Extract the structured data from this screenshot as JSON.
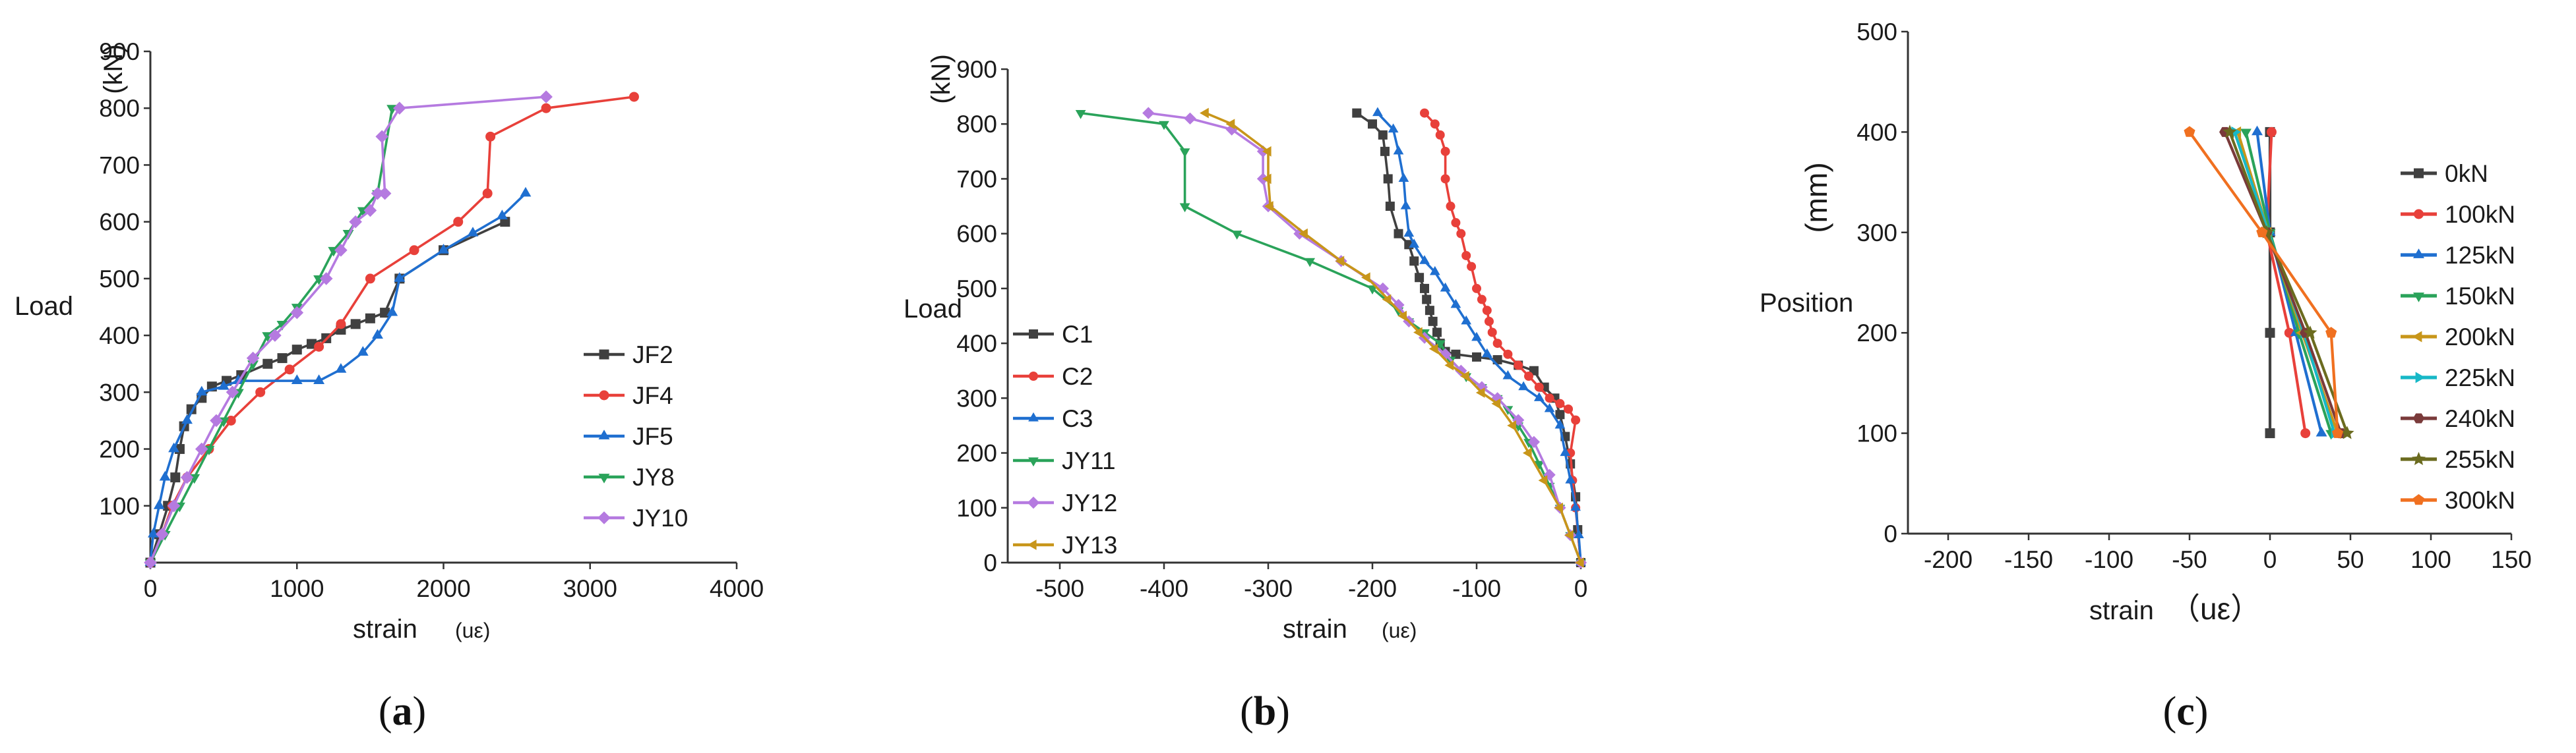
{
  "chart_data": [
    {
      "type": "line",
      "caption": "a",
      "xlabel": "strain",
      "xunit": "(uε)",
      "ylabel": "Load",
      "yunit": "(kN)",
      "xlim": [
        0,
        4000
      ],
      "ylim": [
        0,
        900
      ],
      "xticks": [
        0,
        1000,
        2000,
        3000,
        4000
      ],
      "yticks": [
        100,
        200,
        300,
        400,
        500,
        600,
        700,
        800,
        900
      ],
      "series": [
        {
          "name": "JF2",
          "color": "#404040",
          "marker": "square",
          "x": [
            0,
            60,
            120,
            170,
            200,
            230,
            280,
            350,
            420,
            520,
            620,
            800,
            900,
            1000,
            1100,
            1200,
            1300,
            1400,
            1500,
            1600,
            1700,
            2000,
            2420
          ],
          "y": [
            0,
            50,
            100,
            150,
            200,
            240,
            270,
            290,
            310,
            320,
            330,
            350,
            360,
            375,
            385,
            395,
            410,
            420,
            430,
            440,
            500,
            550,
            600
          ]
        },
        {
          "name": "JF4",
          "color": "#e8403a",
          "marker": "circle",
          "x": [
            0,
            80,
            150,
            250,
            400,
            550,
            750,
            950,
            1150,
            1300,
            1500,
            1800,
            2100,
            2300,
            2320,
            2700,
            3300
          ],
          "y": [
            0,
            50,
            100,
            150,
            200,
            250,
            300,
            340,
            380,
            420,
            500,
            550,
            600,
            650,
            750,
            800,
            820
          ]
        },
        {
          "name": "JF5",
          "color": "#1f6fd0",
          "marker": "triangle",
          "x": [
            0,
            20,
            60,
            100,
            160,
            250,
            350,
            500,
            600,
            1000,
            1150,
            1300,
            1450,
            1550,
            1650,
            1700,
            2000,
            2200,
            2400,
            2560
          ],
          "y": [
            0,
            50,
            100,
            150,
            200,
            250,
            300,
            310,
            320,
            320,
            320,
            340,
            370,
            400,
            440,
            500,
            550,
            580,
            610,
            650
          ]
        },
        {
          "name": "JY8",
          "color": "#2aa35a",
          "marker": "triangle-down",
          "x": [
            0,
            100,
            200,
            300,
            400,
            500,
            600,
            700,
            800,
            900,
            1000,
            1150,
            1250,
            1350,
            1450,
            1550,
            1650
          ],
          "y": [
            0,
            50,
            100,
            150,
            200,
            250,
            300,
            350,
            400,
            420,
            450,
            500,
            550,
            580,
            620,
            650,
            800
          ]
        },
        {
          "name": "JY10",
          "color": "#b57ae0",
          "marker": "diamond",
          "x": [
            0,
            80,
            160,
            250,
            350,
            450,
            560,
            700,
            850,
            1000,
            1200,
            1300,
            1400,
            1500,
            1550,
            1600,
            1580,
            1700,
            2700
          ],
          "y": [
            0,
            50,
            100,
            150,
            200,
            250,
            300,
            360,
            400,
            440,
            500,
            550,
            600,
            620,
            650,
            650,
            750,
            800,
            820
          ]
        }
      ]
    },
    {
      "type": "line",
      "caption": "b",
      "xlabel": "strain",
      "xunit": "(uε)",
      "ylabel": "Load",
      "yunit": "(kN)",
      "xlim": [
        -550,
        0
      ],
      "ylim": [
        0,
        900
      ],
      "xticks": [
        -500,
        -400,
        -300,
        -200,
        -100,
        0
      ],
      "yticks": [
        0,
        100,
        200,
        300,
        400,
        500,
        600,
        700,
        800,
        900
      ],
      "series": [
        {
          "name": "C1",
          "color": "#404040",
          "marker": "square",
          "x": [
            -215,
            -200,
            -190,
            -188,
            -185,
            -183,
            -175,
            -165,
            -160,
            -155,
            -150,
            -148,
            -145,
            -142,
            -138,
            -135,
            -130,
            -120,
            -100,
            -80,
            -60,
            -45,
            -35,
            -25,
            -20,
            -15,
            -10,
            -5,
            -3,
            0
          ],
          "y": [
            820,
            800,
            780,
            750,
            700,
            650,
            600,
            580,
            550,
            520,
            500,
            480,
            460,
            440,
            420,
            400,
            385,
            380,
            375,
            370,
            360,
            350,
            320,
            300,
            270,
            230,
            180,
            120,
            60,
            0
          ]
        },
        {
          "name": "C2",
          "color": "#e8403a",
          "marker": "circle",
          "x": [
            -150,
            -140,
            -135,
            -130,
            -130,
            -125,
            -120,
            -115,
            -110,
            -105,
            -100,
            -95,
            -90,
            -88,
            -85,
            -80,
            -70,
            -60,
            -50,
            -40,
            -30,
            -20,
            -12,
            -5,
            -10,
            -8,
            -5,
            0
          ],
          "y": [
            820,
            800,
            780,
            750,
            700,
            650,
            620,
            600,
            560,
            540,
            500,
            480,
            460,
            440,
            420,
            400,
            380,
            360,
            340,
            320,
            300,
            290,
            280,
            260,
            200,
            150,
            100,
            0
          ]
        },
        {
          "name": "C3",
          "color": "#1f6fd0",
          "marker": "triangle",
          "x": [
            -195,
            -180,
            -175,
            -170,
            -168,
            -165,
            -160,
            -150,
            -140,
            -130,
            -120,
            -110,
            -100,
            -90,
            -70,
            -55,
            -40,
            -30,
            -20,
            -15,
            -10,
            -5,
            -2,
            0
          ],
          "y": [
            820,
            790,
            750,
            700,
            650,
            600,
            580,
            550,
            530,
            500,
            470,
            440,
            410,
            380,
            340,
            320,
            300,
            280,
            250,
            200,
            150,
            100,
            50,
            0
          ]
        },
        {
          "name": "JY11",
          "color": "#2aa35a",
          "marker": "triangle-down",
          "x": [
            -480,
            -400,
            -380,
            -380,
            -330,
            -260,
            -200,
            -175,
            -165,
            -150,
            -135,
            -125,
            -110,
            -95,
            -80,
            -70,
            -60,
            -50,
            -40,
            -30,
            -20,
            -10,
            0
          ],
          "y": [
            820,
            800,
            750,
            650,
            600,
            550,
            500,
            460,
            440,
            420,
            400,
            370,
            340,
            320,
            300,
            280,
            250,
            220,
            180,
            140,
            100,
            50,
            0
          ]
        },
        {
          "name": "JY12",
          "color": "#b57ae0",
          "marker": "diamond",
          "x": [
            -415,
            -375,
            -335,
            -305,
            -305,
            -300,
            -270,
            -230,
            -190,
            -175,
            -165,
            -150,
            -130,
            -115,
            -95,
            -80,
            -60,
            -45,
            -30,
            -20,
            -10,
            0
          ],
          "y": [
            820,
            810,
            790,
            750,
            700,
            650,
            600,
            550,
            500,
            470,
            440,
            410,
            380,
            350,
            320,
            300,
            260,
            220,
            160,
            100,
            50,
            0
          ]
        },
        {
          "name": "JY13",
          "color": "#c8961a",
          "marker": "triangle-left",
          "x": [
            -360,
            -335,
            -300,
            -300,
            -298,
            -265,
            -230,
            -205,
            -185,
            -170,
            -155,
            -140,
            -125,
            -110,
            -95,
            -80,
            -65,
            -50,
            -35,
            -20,
            -10,
            0
          ],
          "y": [
            820,
            800,
            750,
            700,
            650,
            600,
            550,
            520,
            480,
            450,
            420,
            390,
            360,
            340,
            310,
            290,
            250,
            200,
            150,
            100,
            50,
            0
          ]
        }
      ]
    },
    {
      "type": "line",
      "caption": "c",
      "xlabel": "strain",
      "xunit": "（uε）",
      "ylabel": "Position",
      "yunit": "(mm)",
      "orientation": "profile",
      "xlim": [
        -225,
        150
      ],
      "ylim": [
        0,
        500
      ],
      "xticks": [
        -200,
        -150,
        -100,
        -50,
        0,
        50,
        100,
        150
      ],
      "yticks": [
        0,
        100,
        200,
        300,
        400,
        500
      ],
      "series": [
        {
          "name": "0kN",
          "color": "#404040",
          "marker": "square",
          "x": [
            0,
            0,
            0,
            0
          ],
          "y": [
            100,
            200,
            300,
            400
          ]
        },
        {
          "name": "100kN",
          "color": "#e8403a",
          "marker": "circle",
          "x": [
            22,
            12,
            -2,
            1
          ],
          "y": [
            100,
            200,
            300,
            400
          ]
        },
        {
          "name": "125kN",
          "color": "#1f6fd0",
          "marker": "triangle",
          "x": [
            32,
            16,
            0,
            -8
          ],
          "y": [
            100,
            200,
            300,
            400
          ]
        },
        {
          "name": "150kN",
          "color": "#2aa35a",
          "marker": "triangle-down",
          "x": [
            38,
            18,
            0,
            -15
          ],
          "y": [
            100,
            200,
            300,
            400
          ]
        },
        {
          "name": "200kN",
          "color": "#c8961a",
          "marker": "triangle-left",
          "x": [
            42,
            20,
            -1,
            -20
          ],
          "y": [
            100,
            200,
            300,
            400
          ]
        },
        {
          "name": "225kN",
          "color": "#17b8c7",
          "marker": "triangle-right",
          "x": [
            40,
            21,
            -1,
            -22
          ],
          "y": [
            100,
            200,
            300,
            400
          ]
        },
        {
          "name": "240kN",
          "color": "#7a3a3a",
          "marker": "hexagon",
          "x": [
            44,
            22,
            -2,
            -28
          ],
          "y": [
            100,
            200,
            300,
            400
          ]
        },
        {
          "name": "255kN",
          "color": "#6b6b1f",
          "marker": "star",
          "x": [
            48,
            25,
            -2,
            -25
          ],
          "y": [
            100,
            200,
            300,
            400
          ]
        },
        {
          "name": "300kN",
          "color": "#f07020",
          "marker": "pentagon",
          "x": [
            42,
            38,
            -5,
            -50
          ],
          "y": [
            100,
            200,
            300,
            400
          ]
        }
      ]
    }
  ]
}
